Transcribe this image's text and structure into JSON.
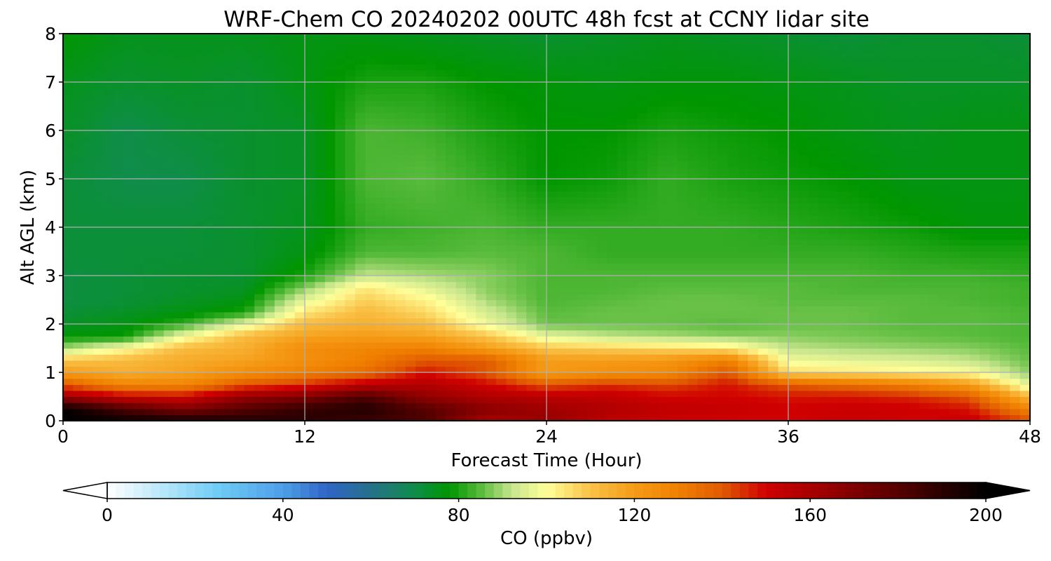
{
  "chart_data": {
    "type": "heatmap",
    "subtype": "filled-contour time-height cross section",
    "title": "WRF-Chem CO  20240202 00UTC 48h fcst at CCNY lidar site",
    "xlabel": "Forecast Time (Hour)",
    "ylabel": "Alt AGL (km)",
    "xlim": [
      0,
      48
    ],
    "ylim": [
      0,
      8
    ],
    "xticks": [
      0,
      12,
      24,
      36,
      48
    ],
    "yticks": [
      0,
      1,
      2,
      3,
      4,
      5,
      6,
      7,
      8
    ],
    "grid": true,
    "x_hours": [
      0,
      3,
      6,
      9,
      12,
      15,
      18,
      21,
      24,
      27,
      30,
      33,
      36,
      39,
      42,
      45,
      48
    ],
    "y_km": [
      0,
      0.25,
      0.5,
      0.75,
      1,
      1.25,
      1.5,
      1.75,
      2,
      2.25,
      2.5,
      2.75,
      3,
      3.5,
      4,
      5,
      6,
      7,
      8
    ],
    "z_ppbv": [
      [
        200,
        198,
        196,
        192,
        190,
        186,
        182,
        160,
        165,
        155,
        152,
        150,
        150,
        152,
        150,
        152,
        142
      ],
      [
        200,
        182,
        170,
        180,
        188,
        192,
        180,
        168,
        162,
        158,
        154,
        153,
        150,
        152,
        151,
        148,
        128
      ],
      [
        162,
        152,
        150,
        165,
        170,
        182,
        165,
        158,
        156,
        154,
        150,
        150,
        148,
        148,
        146,
        140,
        112
      ],
      [
        140,
        128,
        128,
        140,
        145,
        155,
        158,
        150,
        140,
        145,
        142,
        148,
        140,
        136,
        130,
        120,
        95
      ],
      [
        120,
        115,
        118,
        125,
        130,
        135,
        148,
        140,
        120,
        124,
        126,
        140,
        106,
        104,
        102,
        100,
        88
      ],
      [
        110,
        112,
        116,
        118,
        124,
        130,
        140,
        140,
        120,
        120,
        122,
        130,
        98,
        96,
        95,
        92,
        86
      ],
      [
        90,
        100,
        112,
        115,
        125,
        128,
        130,
        120,
        110,
        108,
        106,
        104,
        92,
        90,
        89,
        88,
        85
      ],
      [
        78,
        78,
        98,
        112,
        118,
        120,
        118,
        110,
        96,
        92,
        90,
        88,
        88,
        87,
        86,
        85,
        84
      ],
      [
        74,
        76,
        82,
        96,
        112,
        115,
        112,
        98,
        86,
        86,
        86,
        85,
        86,
        86,
        85,
        85,
        84
      ],
      [
        72,
        74,
        76,
        80,
        104,
        112,
        106,
        94,
        85,
        86,
        86,
        86,
        86,
        86,
        85,
        85,
        84
      ],
      [
        71,
        72,
        74,
        76,
        96,
        108,
        102,
        90,
        84,
        85,
        86,
        86,
        85,
        85,
        85,
        84,
        83
      ],
      [
        71,
        72,
        73,
        74,
        88,
        104,
        96,
        88,
        84,
        84,
        85,
        85,
        85,
        84,
        84,
        84,
        83
      ],
      [
        71,
        72,
        73,
        73,
        80,
        92,
        90,
        88,
        84,
        84,
        84,
        84,
        84,
        84,
        83,
        83,
        82
      ],
      [
        72,
        72,
        72,
        73,
        76,
        84,
        84,
        85,
        84,
        82,
        82,
        82,
        82,
        82,
        81,
        80,
        80
      ],
      [
        72,
        72,
        72,
        73,
        75,
        82,
        83,
        84,
        82,
        82,
        82,
        82,
        81,
        80,
        79,
        77,
        77
      ],
      [
        72,
        70,
        70,
        73,
        74,
        84,
        85,
        82,
        78,
        79,
        82,
        80,
        79,
        78,
        76,
        76,
        76
      ],
      [
        74,
        70,
        72,
        73,
        74,
        84,
        83,
        80,
        78,
        78,
        80,
        79,
        78,
        76,
        75,
        76,
        76
      ],
      [
        75,
        73,
        74,
        73,
        76,
        80,
        80,
        78,
        77,
        76,
        77,
        77,
        76,
        75,
        74,
        74,
        74
      ],
      [
        78,
        75,
        75,
        75,
        76,
        76,
        75,
        74,
        73,
        74,
        75,
        74,
        73,
        72,
        73,
        73,
        72
      ]
    ],
    "colorbar": {
      "label": "CO  (ppbv)",
      "ticks": [
        0,
        40,
        80,
        120,
        160,
        200
      ],
      "range": [
        0,
        200
      ],
      "extend": "both",
      "orientation": "horizontal",
      "placement": "bottom",
      "stops": [
        {
          "v": 0,
          "c": "#ffffff"
        },
        {
          "v": 10,
          "c": "#c6ecfb"
        },
        {
          "v": 25,
          "c": "#6fcdf6"
        },
        {
          "v": 40,
          "c": "#4d9fe8"
        },
        {
          "v": 50,
          "c": "#3065c7"
        },
        {
          "v": 60,
          "c": "#26708a"
        },
        {
          "v": 70,
          "c": "#0f8d4a"
        },
        {
          "v": 78,
          "c": "#009600"
        },
        {
          "v": 85,
          "c": "#59bb3c"
        },
        {
          "v": 92,
          "c": "#c6e58c"
        },
        {
          "v": 100,
          "c": "#ffff99"
        },
        {
          "v": 110,
          "c": "#f9c247"
        },
        {
          "v": 120,
          "c": "#f59b17"
        },
        {
          "v": 130,
          "c": "#f08000"
        },
        {
          "v": 140,
          "c": "#e05a00"
        },
        {
          "v": 150,
          "c": "#d00000"
        },
        {
          "v": 160,
          "c": "#a80000"
        },
        {
          "v": 175,
          "c": "#6b0000"
        },
        {
          "v": 190,
          "c": "#2a0000"
        },
        {
          "v": 200,
          "c": "#000000"
        }
      ]
    }
  }
}
